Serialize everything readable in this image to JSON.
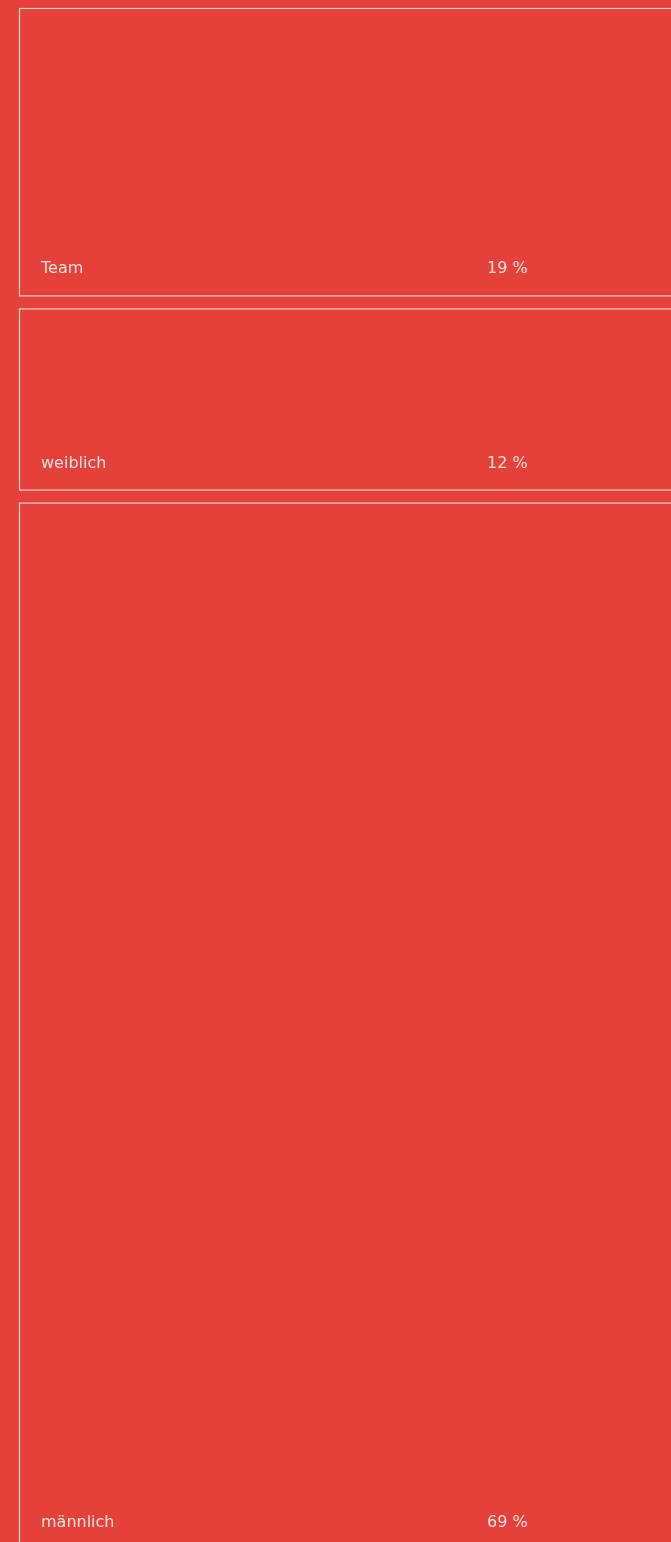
{
  "chart_data": {
    "type": "other",
    "categories": [
      "Team",
      "weiblich",
      "männlich"
    ],
    "values": [
      19,
      12,
      69
    ],
    "value_labels": [
      "19 %",
      "12 %",
      "69 %"
    ],
    "color": "#e5413a"
  }
}
